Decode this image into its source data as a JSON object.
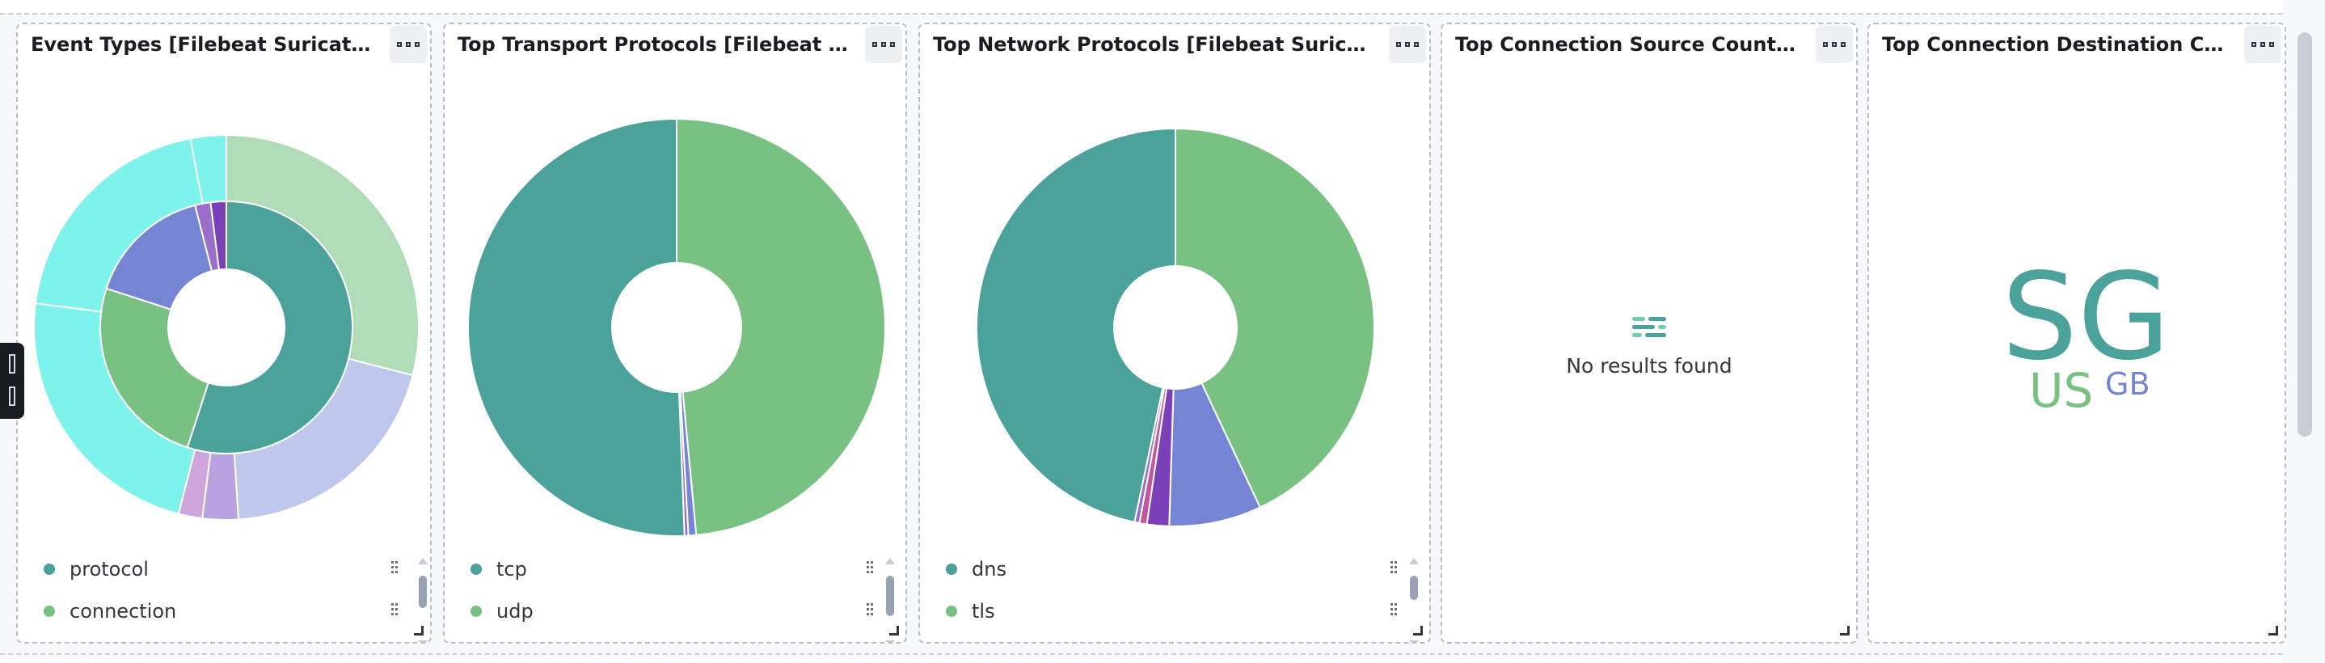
{
  "panels": [
    {
      "title": "Event Types [Filebeat Suricata] (co...",
      "legend": [
        {
          "label": "protocol",
          "color": "#54b399"
        },
        {
          "label": "connection",
          "color": "#6dccb1"
        }
      ]
    },
    {
      "title": "Top Transport Protocols [Filebeat Suric...",
      "legend": [
        {
          "label": "tcp",
          "color": "#54b399"
        },
        {
          "label": "udp",
          "color": "#6dccb1"
        }
      ]
    },
    {
      "title": "Top Network Protocols [Filebeat Suricata] (c...",
      "legend": [
        {
          "label": "dns",
          "color": "#54b399"
        },
        {
          "label": "tls",
          "color": "#6dccb1"
        }
      ]
    },
    {
      "title": "Top Connection Source Countries [...",
      "no_results": "No results found"
    },
    {
      "title": "Top Connection Destination Count...",
      "words": [
        {
          "text": "SG",
          "color": "#4aa29a"
        },
        {
          "text": "US",
          "color": "#79c083"
        },
        {
          "text": "GB",
          "color": "#7685d3"
        }
      ]
    }
  ],
  "chart_data": [
    {
      "type": "pie",
      "title": "Event Types [Filebeat Suricata] (co...",
      "inner_ring": {
        "labels": [
          "protocol",
          "connection",
          "seg3",
          "seg4",
          "seg5"
        ],
        "values": [
          55,
          25,
          16,
          2,
          2
        ],
        "colors": [
          "#4aa29a",
          "#79c083",
          "#7685d3",
          "#9a6fcc",
          "#7b3fb8"
        ]
      },
      "outer_ring": {
        "values": [
          29,
          20,
          3,
          2,
          23,
          20,
          3
        ],
        "colors": [
          "#b0dcb7",
          "#c0c7ec",
          "#b8a3e0",
          "#cda4dc",
          "#7ef3ec",
          "#7ef3ec",
          "#7ef3ec"
        ]
      },
      "legend": [
        "protocol",
        "connection"
      ]
    },
    {
      "type": "pie",
      "title": "Top Transport Protocols [Filebeat Suric...",
      "labels": [
        "udp",
        "seg3",
        "seg4",
        "tcp"
      ],
      "values": [
        48.5,
        0.6,
        0.3,
        50.6
      ],
      "colors": [
        "#79c083",
        "#7685d3",
        "#9a6fcc",
        "#4aa29a"
      ],
      "legend": [
        "tcp",
        "udp"
      ]
    },
    {
      "type": "pie",
      "title": "Top Network Protocols [Filebeat Suricata] (c...",
      "labels": [
        "tls",
        "seg3",
        "seg4",
        "seg5",
        "seg6",
        "dns"
      ],
      "values": [
        43,
        7.5,
        1.8,
        0.6,
        0.4,
        46.7
      ],
      "colors": [
        "#79c083",
        "#7685d3",
        "#7b3fb8",
        "#c0589e",
        "#9a6fcc",
        "#4aa29a"
      ],
      "legend": [
        "dns",
        "tls"
      ]
    }
  ]
}
